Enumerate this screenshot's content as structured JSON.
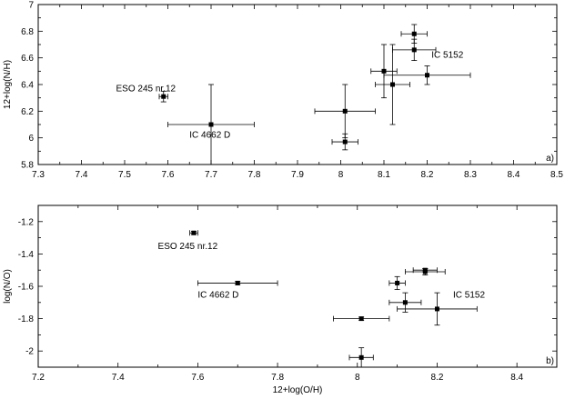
{
  "chart_data": [
    {
      "type": "scatter",
      "panel_label": "a)",
      "xlabel": "",
      "ylabel": "12+log(N/H)",
      "xlim": [
        7.3,
        8.5
      ],
      "ylim": [
        5.8,
        7.0
      ],
      "xticks": [
        7.3,
        7.4,
        7.5,
        7.6,
        7.7,
        7.8,
        7.9,
        8.0,
        8.1,
        8.2,
        8.3,
        8.4,
        8.5
      ],
      "xtick_labels": [
        "7.3",
        "7.4",
        "7.5",
        "7.6",
        "7.7",
        "7.8",
        "7.9",
        "8",
        "8.1",
        "8.2",
        "8.3",
        "8.4",
        "8.5"
      ],
      "yticks": [
        5.8,
        6.0,
        6.2,
        6.4,
        6.6,
        6.8,
        7.0
      ],
      "ytick_labels": [
        "5.8",
        "6",
        "6.2",
        "6.4",
        "6.6",
        "6.8",
        "7"
      ],
      "points": [
        {
          "x": 7.59,
          "y": 6.31,
          "xerr": 0.01,
          "yerr": 0.04
        },
        {
          "x": 7.7,
          "y": 6.1,
          "xerr": 0.1,
          "yerr": 0.3
        },
        {
          "x": 8.01,
          "y": 6.2,
          "xerr": 0.07,
          "yerr": 0.2
        },
        {
          "x": 8.01,
          "y": 5.97,
          "xerr": 0.03,
          "yerr": 0.06
        },
        {
          "x": 8.1,
          "y": 6.5,
          "xerr": 0.03,
          "yerr": 0.2
        },
        {
          "x": 8.12,
          "y": 6.4,
          "xerr": 0.04,
          "yerr": 0.3
        },
        {
          "x": 8.17,
          "y": 6.66,
          "xerr": 0.05,
          "yerr": 0.08
        },
        {
          "x": 8.17,
          "y": 6.78,
          "xerr": 0.03,
          "yerr": 0.07
        },
        {
          "x": 8.2,
          "y": 6.47,
          "xerr": 0.1,
          "yerr": 0.07
        }
      ],
      "annotations": [
        {
          "text": "ESO 245 nr.12",
          "x": 7.48,
          "y": 6.35
        },
        {
          "text": "IC 4662 D",
          "x": 7.65,
          "y": 6.0
        },
        {
          "text": "IC 5152",
          "x": 8.21,
          "y": 6.6
        }
      ]
    },
    {
      "type": "scatter",
      "panel_label": "b)",
      "xlabel": "12+log(O/H)",
      "ylabel": "log(N/O)",
      "xlim": [
        7.2,
        8.5
      ],
      "ylim": [
        -2.1,
        -1.1
      ],
      "xticks": [
        7.2,
        7.4,
        7.6,
        7.8,
        8.0,
        8.2,
        8.4
      ],
      "xtick_labels": [
        "7.2",
        "7.4",
        "7.6",
        "7.8",
        "8",
        "8.2",
        "8.4"
      ],
      "yticks": [
        -2.0,
        -1.8,
        -1.6,
        -1.4,
        -1.2
      ],
      "ytick_labels": [
        "-2",
        "-1.8",
        "-1.6",
        "-1.4",
        "-1.2"
      ],
      "points": [
        {
          "x": 7.59,
          "y": -1.27,
          "xerr": 0.01,
          "yerr": 0.01
        },
        {
          "x": 7.7,
          "y": -1.58,
          "xerr": 0.1,
          "yerr": 0.01
        },
        {
          "x": 8.01,
          "y": -1.8,
          "xerr": 0.07,
          "yerr": 0.01
        },
        {
          "x": 8.01,
          "y": -2.04,
          "xerr": 0.03,
          "yerr": 0.06
        },
        {
          "x": 8.1,
          "y": -1.58,
          "xerr": 0.02,
          "yerr": 0.04
        },
        {
          "x": 8.12,
          "y": -1.7,
          "xerr": 0.04,
          "yerr": 0.06
        },
        {
          "x": 8.17,
          "y": -1.5,
          "xerr": 0.03,
          "yerr": 0.01
        },
        {
          "x": 8.17,
          "y": -1.51,
          "xerr": 0.05,
          "yerr": 0.02
        },
        {
          "x": 8.2,
          "y": -1.74,
          "xerr": 0.1,
          "yerr": 0.1
        }
      ],
      "annotations": [
        {
          "text": "ESO 245 nr.12",
          "x": 7.5,
          "y": -1.37
        },
        {
          "text": "IC 4662 D",
          "x": 7.6,
          "y": -1.67
        },
        {
          "text": "IC 5152",
          "x": 8.24,
          "y": -1.67
        }
      ]
    }
  ]
}
